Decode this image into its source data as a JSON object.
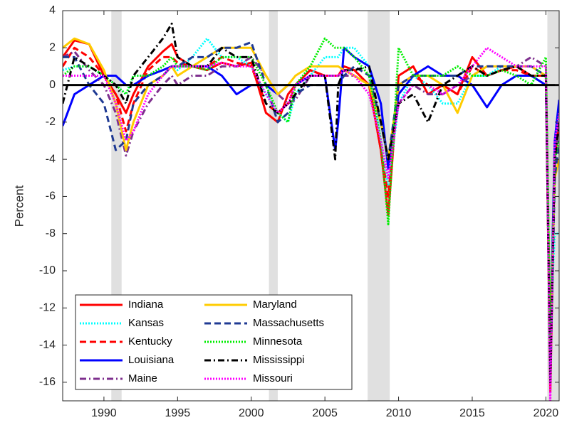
{
  "chart_data": {
    "type": "line",
    "y_label": "Percent",
    "xlim": [
      1987.2,
      2020.9
    ],
    "xticks": [
      1990,
      1995,
      2000,
      2005,
      2010,
      2015,
      2020
    ],
    "ylim": [
      -17,
      4
    ],
    "yticks": [
      4,
      2,
      0,
      -2,
      -4,
      -6,
      -8,
      -10,
      -12,
      -14,
      -16
    ],
    "reference_line": 0,
    "recessions": [
      [
        1990.5,
        1991.2
      ],
      [
        2001.2,
        2001.8
      ],
      [
        2007.9,
        2009.4
      ],
      [
        2020.1,
        2020.9
      ]
    ],
    "legend_position": "lower left",
    "x": [
      1987.2,
      1988,
      1989,
      1990,
      1990.8,
      1991.5,
      1992,
      1993,
      1994,
      1994.6,
      1995,
      1996,
      1997,
      1998,
      1999,
      2000,
      2001,
      2001.8,
      2002.5,
      2003,
      2004,
      2005,
      2005.7,
      2005.9,
      2006.3,
      2007,
      2008,
      2008.8,
      2009.3,
      2010,
      2011,
      2012,
      2013,
      2014,
      2015,
      2016,
      2017,
      2018,
      2019,
      2020,
      2020.3,
      2020.6,
      2020.9
    ],
    "series": [
      {
        "name": "Indiana",
        "color": "#ff0000",
        "line_style": "solid",
        "values": [
          1.5,
          2.4,
          2.2,
          0.5,
          -0.5,
          -1.5,
          -0.5,
          1.0,
          1.8,
          2.2,
          1.5,
          1.0,
          0.8,
          1.2,
          1.0,
          1.2,
          -1.5,
          -2.0,
          -0.5,
          0.0,
          0.8,
          0.5,
          0.5,
          0.5,
          1.0,
          0.8,
          0.0,
          -3.5,
          -7.0,
          0.5,
          1.0,
          -0.5,
          0.0,
          -0.5,
          1.5,
          0.5,
          0.8,
          1.0,
          0.5,
          0.5,
          -16.5,
          -4,
          -2
        ]
      },
      {
        "name": "Kansas",
        "color": "#00ffff",
        "line_style": "dotted",
        "values": [
          0.8,
          1.0,
          1.0,
          0.5,
          0.0,
          -0.5,
          0.5,
          0.5,
          0.8,
          1.0,
          0.8,
          1.5,
          2.5,
          1.5,
          1.5,
          1.0,
          -0.5,
          -1.5,
          -2.0,
          -0.5,
          0.5,
          1.5,
          1.5,
          1.5,
          2.0,
          2.0,
          1.0,
          -3.0,
          -5.5,
          -1.0,
          0.5,
          0.0,
          -1.0,
          -1.0,
          0.5,
          0.5,
          1.0,
          1.0,
          1.0,
          0.5,
          -13,
          -8,
          -8
        ]
      },
      {
        "name": "Kentucky",
        "color": "#ff0000",
        "line_style": "dashed",
        "values": [
          1.0,
          2.0,
          1.5,
          0.5,
          -0.5,
          -2.5,
          -1.0,
          0.8,
          1.5,
          1.5,
          1.2,
          1.0,
          1.0,
          1.5,
          1.2,
          1.0,
          -1.0,
          -1.5,
          -1.0,
          0.0,
          0.8,
          0.5,
          0.5,
          0.5,
          0.8,
          0.5,
          0.0,
          -3.5,
          -6.0,
          0.0,
          0.5,
          0.0,
          0.0,
          -0.5,
          1.0,
          0.5,
          0.8,
          0.8,
          0.5,
          0.5,
          -15,
          -3,
          -2
        ]
      },
      {
        "name": "Louisiana",
        "color": "#0000ff",
        "line_style": "solid",
        "values": [
          -2.2,
          -0.5,
          0.0,
          0.5,
          0.5,
          0.0,
          0.0,
          0.5,
          0.8,
          1.0,
          1.0,
          1.0,
          1.0,
          0.5,
          -0.5,
          0.0,
          0.0,
          -0.5,
          0.0,
          0.0,
          0.5,
          0.5,
          -3.5,
          -2.0,
          2.0,
          1.5,
          1.0,
          -1.0,
          -4.5,
          -0.5,
          0.5,
          1.0,
          0.5,
          0.5,
          0.0,
          -1.2,
          0.0,
          0.5,
          0.5,
          0.0,
          -14,
          -3,
          -0.8
        ]
      },
      {
        "name": "Maine",
        "color": "#7e2f8e",
        "line_style": "dashdot",
        "values": [
          1.5,
          1.8,
          0.8,
          0.0,
          -1.5,
          -3.8,
          -2.5,
          -1.0,
          0.0,
          0.5,
          0.0,
          0.5,
          0.5,
          1.0,
          1.0,
          1.5,
          0.5,
          -0.5,
          -1.0,
          -0.8,
          0.5,
          0.5,
          0.5,
          0.5,
          0.5,
          0.5,
          0.0,
          -2.0,
          -4.0,
          -1.0,
          0.0,
          -0.5,
          -0.5,
          0.0,
          0.5,
          1.0,
          1.0,
          1.0,
          1.5,
          1.0,
          -15,
          -4,
          -2
        ]
      },
      {
        "name": "Maryland",
        "color": "#ffcc00",
        "line_style": "solid",
        "values": [
          2.0,
          2.5,
          2.2,
          0.8,
          -1.0,
          -3.5,
          -2.0,
          0.0,
          0.5,
          1.0,
          0.5,
          1.0,
          1.5,
          2.0,
          2.0,
          2.0,
          0.5,
          -0.5,
          0.0,
          0.5,
          1.0,
          1.0,
          1.0,
          1.0,
          0.8,
          0.5,
          0.0,
          -2.0,
          -4.0,
          0.0,
          0.5,
          0.5,
          0.0,
          -1.5,
          0.5,
          1.0,
          1.0,
          1.0,
          1.0,
          0.5,
          -14,
          -5,
          -4
        ]
      },
      {
        "name": "Massachusetts",
        "color": "#1f3a93",
        "line_style": "dashed",
        "values": [
          1.5,
          1.5,
          0.0,
          -1.0,
          -3.5,
          -3.0,
          -1.0,
          0.0,
          0.5,
          1.0,
          1.0,
          1.5,
          1.5,
          2.0,
          2.0,
          2.3,
          0.0,
          -2.0,
          -1.5,
          -0.5,
          0.0,
          0.0,
          0.0,
          0.0,
          0.5,
          1.0,
          0.5,
          -2.0,
          -4.0,
          0.0,
          0.5,
          0.5,
          0.5,
          0.5,
          1.0,
          1.0,
          1.0,
          1.0,
          1.0,
          0.5,
          -16,
          -5,
          -3
        ]
      },
      {
        "name": "Minnesota",
        "color": "#00ee00",
        "line_style": "dotted",
        "values": [
          0.5,
          1.0,
          1.0,
          0.5,
          0.0,
          -0.5,
          0.5,
          0.5,
          1.0,
          1.5,
          1.0,
          1.0,
          0.8,
          1.5,
          1.5,
          1.5,
          0.0,
          -1.5,
          -2.0,
          0.0,
          1.0,
          2.5,
          2.0,
          2.0,
          2.0,
          1.5,
          0.5,
          -3.0,
          -7.5,
          2.0,
          0.5,
          0.5,
          0.5,
          1.0,
          0.5,
          0.5,
          0.8,
          0.5,
          0.0,
          1.5,
          -14,
          -4,
          -3
        ]
      },
      {
        "name": "Mississippi",
        "color": "#000000",
        "line_style": "dashdot",
        "values": [
          -1.0,
          1.5,
          1.0,
          0.5,
          0.0,
          -1.0,
          0.5,
          1.5,
          2.5,
          3.3,
          1.5,
          1.0,
          1.0,
          2.0,
          1.5,
          1.5,
          -1.0,
          -1.5,
          -1.0,
          -0.5,
          0.5,
          0.5,
          -4.0,
          0.0,
          0.8,
          0.8,
          1.0,
          -2.0,
          -4.0,
          -1.0,
          -0.5,
          -2.0,
          0.0,
          0.5,
          1.0,
          0.5,
          0.8,
          1.0,
          0.5,
          0.5,
          -16,
          -4,
          -2
        ]
      },
      {
        "name": "Missouri",
        "color": "#ff00ff",
        "line_style": "dotted",
        "values": [
          0.5,
          0.5,
          0.5,
          0.5,
          -1.0,
          -3.0,
          -2.5,
          -0.5,
          0.5,
          1.0,
          1.0,
          1.0,
          1.0,
          1.2,
          1.0,
          1.0,
          -0.5,
          -1.5,
          -1.0,
          0.0,
          0.5,
          0.5,
          0.5,
          0.5,
          0.8,
          0.5,
          -0.5,
          -3.0,
          -5.0,
          -1.0,
          0.0,
          0.0,
          -0.5,
          0.0,
          1.0,
          2.0,
          1.5,
          1.0,
          1.0,
          1.0,
          -17,
          -3,
          -1.5
        ]
      }
    ]
  }
}
